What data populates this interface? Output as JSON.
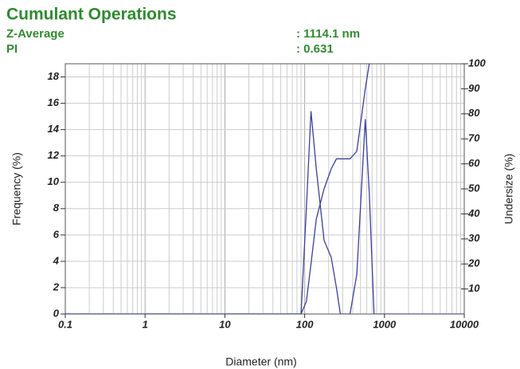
{
  "chart_data": {
    "type": "line",
    "title": "Cumulant Operations",
    "annotations": [
      {
        "label": "Z-Average",
        "value": ": 1114.1 nm"
      },
      {
        "label": "PI",
        "value": ": 0.631"
      }
    ],
    "xlabel": "Diameter (nm)",
    "ylabel": "Frequency (%)",
    "y2label": "Undersize (%)",
    "xscale": "log",
    "x": [
      0.1,
      1,
      10,
      90,
      105,
      120,
      140,
      175,
      215,
      250,
      280,
      370,
      450,
      575,
      645,
      740,
      10000
    ],
    "series": [
      {
        "name": "Frequency",
        "color": "#3b3fa0",
        "axis": "y",
        "values": [
          0,
          0,
          0,
          0,
          8,
          15.4,
          11,
          5.6,
          4.3,
          2,
          0,
          0,
          3,
          14.8,
          9.2,
          0,
          0
        ]
      },
      {
        "name": "Undersize",
        "color": "#3b3fa0",
        "axis": "y2",
        "values": [
          0,
          0,
          0,
          0,
          5,
          20,
          38,
          50,
          58,
          62,
          62,
          62,
          65,
          90,
          100,
          null,
          null
        ]
      }
    ],
    "xlim": [
      0.1,
      10000
    ],
    "xticks": [
      0.1,
      1,
      10,
      100,
      1000,
      10000
    ],
    "ylim": [
      0,
      19
    ],
    "yticks": [
      0,
      2,
      4,
      6,
      8,
      10,
      12,
      14,
      16,
      18
    ],
    "y2lim": [
      0,
      100
    ],
    "y2ticks": [
      10,
      20,
      30,
      40,
      50,
      60,
      70,
      80,
      90,
      100
    ],
    "grid": true
  }
}
